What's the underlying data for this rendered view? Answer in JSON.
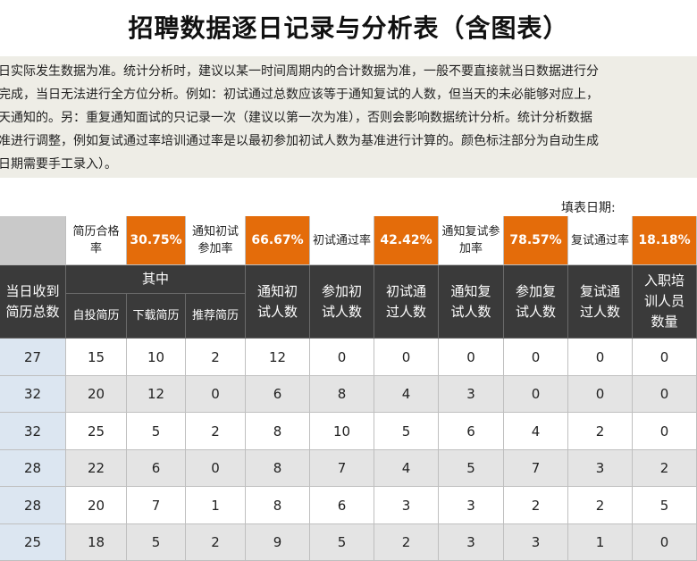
{
  "title": "招聘数据逐日记录与分析表（含图表）",
  "note_lines": [
    "日实际发生数据为准。统计分析时，建议以某一时间周期内的合计数据为准，一般不要直接就当日数据进行分",
    "完成，当日无法进行全方位分析。例如：初试通过总数应该等于通知复试的人数，但当天的未必能够对应上，",
    "天通知的。另：重复通知面试的只记录一次（建议以第一次为准），否则会影响数据统计分析。统计分析数据",
    "准进行调整，例如复试通过率培训通过率是以最初参加初试人数为基准进行计算的。颜色标注部分为自动生成",
    "日期需要手工录入）。"
  ],
  "fill_date_label": "填表日期:",
  "rates": [
    {
      "label": "简历合格率",
      "value": "30.75%"
    },
    {
      "label": "通知初试参加率",
      "value": "66.67%"
    },
    {
      "label": "初试通过率",
      "value": "42.42%"
    },
    {
      "label": "通知复试参加率",
      "value": "78.57%"
    },
    {
      "label": "复试通过率",
      "value": "18.18%"
    }
  ],
  "headers": {
    "total_resumes": "当日收到简历总数",
    "group_label": "其中",
    "sub": [
      "自投简历",
      "下载简历",
      "推荐简历"
    ],
    "cols": [
      "通知初试人数",
      "参加初试人数",
      "初试通过人数",
      "通知复试人数",
      "参加复试人数",
      "复试通过人数",
      "入职培训人员数量"
    ]
  },
  "rows": [
    [
      "27",
      "15",
      "10",
      "2",
      "12",
      "0",
      "0",
      "0",
      "0",
      "0",
      "0"
    ],
    [
      "32",
      "20",
      "12",
      "0",
      "6",
      "8",
      "4",
      "3",
      "0",
      "0",
      "0"
    ],
    [
      "32",
      "25",
      "5",
      "2",
      "8",
      "10",
      "5",
      "6",
      "4",
      "2",
      "0"
    ],
    [
      "28",
      "22",
      "6",
      "0",
      "8",
      "7",
      "4",
      "5",
      "7",
      "3",
      "2"
    ],
    [
      "28",
      "20",
      "7",
      "1",
      "8",
      "6",
      "3",
      "3",
      "2",
      "2",
      "5"
    ],
    [
      "25",
      "18",
      "5",
      "2",
      "9",
      "5",
      "2",
      "3",
      "3",
      "1",
      "0"
    ]
  ]
}
